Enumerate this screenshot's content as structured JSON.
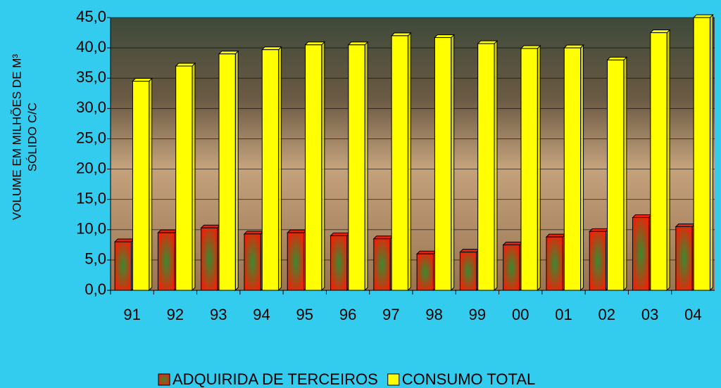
{
  "chart_data": {
    "type": "bar3d",
    "y_label_lines": [
      "VOLUME EM MILHÕES DE M³",
      "SÓLIDO C/C"
    ],
    "categories": [
      "91",
      "92",
      "93",
      "94",
      "95",
      "96",
      "97",
      "98",
      "99",
      "00",
      "01",
      "02",
      "03",
      "04"
    ],
    "series": [
      {
        "name": "ADQUIRIDA DE TERCEIROS",
        "color": "#e8200c",
        "values": [
          8.0,
          9.5,
          10.3,
          9.3,
          9.5,
          9.0,
          8.5,
          6.0,
          6.3,
          7.5,
          8.8,
          9.7,
          12.0,
          10.5
        ]
      },
      {
        "name": "CONSUMO TOTAL",
        "color": "#ffff00",
        "values": [
          34.5,
          37.0,
          39.0,
          39.7,
          40.5,
          40.5,
          42.0,
          41.7,
          40.7,
          39.9,
          40.0,
          38.0,
          42.5,
          45.0
        ]
      }
    ],
    "ylim": [
      0,
      45
    ],
    "yticks": [
      {
        "value": 0,
        "label": "0,0"
      },
      {
        "value": 5,
        "label": "5,0"
      },
      {
        "value": 10,
        "label": "10,0"
      },
      {
        "value": 15,
        "label": "15,0"
      },
      {
        "value": 20,
        "label": "20,0"
      },
      {
        "value": 25,
        "label": "25,0"
      },
      {
        "value": 30,
        "label": "30,0"
      },
      {
        "value": 35,
        "label": "35,0"
      },
      {
        "value": 40,
        "label": "40,0"
      },
      {
        "value": 45,
        "label": "45,0"
      }
    ],
    "grid": true,
    "legend": "bottom"
  }
}
